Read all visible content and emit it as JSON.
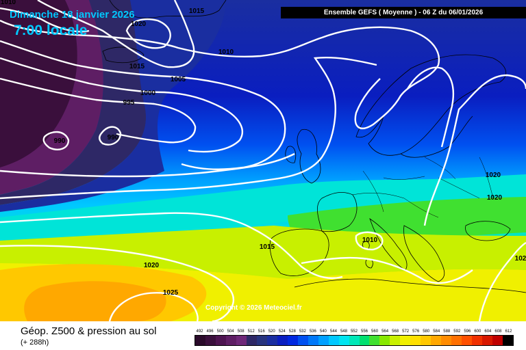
{
  "header": {
    "date": "Dimanche 18 janvier 2026",
    "time": "7:00 locale",
    "model": "Ensemble GEFS  ( Moyenne )  -  06 Z du 06/01/2026"
  },
  "copyright": "Copyright © 2026 Meteociel.fr",
  "footer": {
    "title": "Géop. Z500 & pression au sol",
    "lead_time": "(+ 288h)"
  },
  "isobars": [
    {
      "value": "1010"
    },
    {
      "value": "1015"
    },
    {
      "value": "1020"
    },
    {
      "value": "1015"
    },
    {
      "value": "1010"
    },
    {
      "value": "1005"
    },
    {
      "value": "1000"
    },
    {
      "value": "995"
    },
    {
      "value": "990"
    },
    {
      "value": "990"
    },
    {
      "value": "1020"
    },
    {
      "value": "1020"
    },
    {
      "value": "1010"
    },
    {
      "value": "1015"
    },
    {
      "value": "1020"
    },
    {
      "value": "1025"
    },
    {
      "value": "102"
    }
  ],
  "legend": {
    "values": [
      "492",
      "496",
      "500",
      "504",
      "508",
      "512",
      "516",
      "520",
      "524",
      "528",
      "532",
      "536",
      "540",
      "544",
      "548",
      "552",
      "556",
      "560",
      "564",
      "568",
      "572",
      "576",
      "580",
      "584",
      "588",
      "592",
      "596",
      "600",
      "604",
      "608",
      "612"
    ],
    "colors": [
      "#2a0a2a",
      "#3a0f3c",
      "#4d1450",
      "#5e1e64",
      "#6e2878",
      "#2e2866",
      "#27347e",
      "#1a2ea0",
      "#0a1ec0",
      "#0028e0",
      "#0050f0",
      "#0078f8",
      "#00a0ff",
      "#00c8ff",
      "#00e4f0",
      "#00e8b8",
      "#00e070",
      "#40e030",
      "#88e800",
      "#c8f000",
      "#f0f000",
      "#ffe000",
      "#ffc800",
      "#ffa800",
      "#ff8c00",
      "#ff7000",
      "#ff5000",
      "#f03000",
      "#d81800",
      "#c00000",
      "#000000"
    ]
  }
}
